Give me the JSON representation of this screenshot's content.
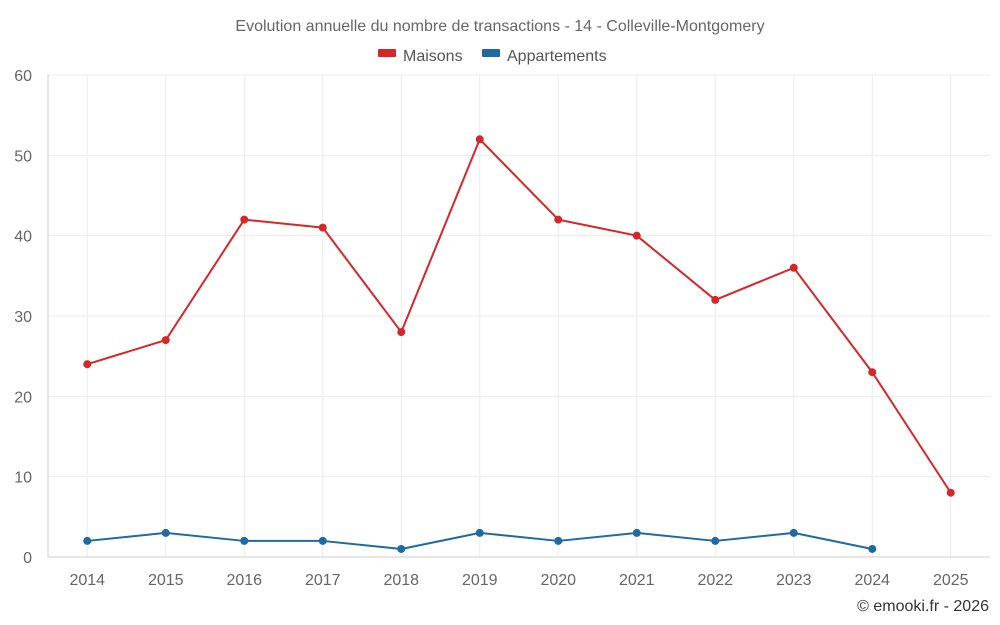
{
  "chart_data": {
    "type": "line",
    "title": "Evolution annuelle du nombre de transactions - 14 - Colleville-Montgomery",
    "categories": [
      "2014",
      "2015",
      "2016",
      "2017",
      "2018",
      "2019",
      "2020",
      "2021",
      "2022",
      "2023",
      "2024",
      "2025"
    ],
    "series": [
      {
        "name": "Maisons",
        "color": "#d62728",
        "values": [
          24,
          27,
          42,
          41,
          28,
          52,
          42,
          40,
          32,
          36,
          23,
          8
        ]
      },
      {
        "name": "Appartements",
        "color": "#1f6aa0",
        "values": [
          2,
          3,
          2,
          2,
          1,
          3,
          2,
          3,
          2,
          3,
          1,
          null
        ]
      }
    ],
    "ylim": [
      0,
      60
    ],
    "yticks": [
      0,
      10,
      20,
      30,
      40,
      50,
      60
    ],
    "xlabel": "",
    "ylabel": "",
    "grid": true,
    "legend": "top-center",
    "credit": "© emooki.fr - 2026"
  }
}
